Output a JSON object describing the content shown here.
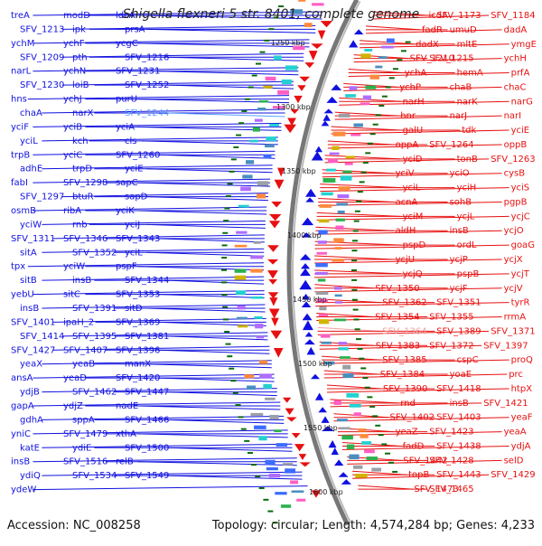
{
  "title": "Shigella flexneri 5 str. 8401, complete genome",
  "footer": {
    "accession": "Accession: NC_008258",
    "summary": "Topology: circular; Length: 4,574,284 bp; Genes: 4,233"
  },
  "colors": {
    "forward": "#e81010",
    "reverse": "#1010e0",
    "highlight": "#5aa0ff",
    "pseudogene": "#f0a0a0",
    "backbone": "#777777",
    "tick": "#0b6b0b"
  },
  "scale_ticks": [
    "1250 kbp",
    "1300 kbp",
    "1350 kbp",
    "1400 kbp",
    "1450 kbp",
    "1500 kbp",
    "1550 kbp",
    "1600 kbp"
  ],
  "left_labels": [
    "treA",
    "modD",
    "ldcA",
    "SFV_1213",
    "ipk",
    "prsA",
    "ychM",
    "ychF",
    "ycgC",
    "SFV_1209",
    "pth",
    "SFV_1216",
    "narL",
    "ychN",
    "SFV_1231",
    "SFV_1230",
    "loiB",
    "SFV_1252",
    "hns",
    "ychJ",
    "purU",
    "chaA",
    "narX",
    "SFV_1244",
    "yciF",
    "yciB",
    "yciA",
    "yciL",
    "kch",
    "cls",
    "trpB",
    "yciC",
    "SFV_1260",
    "adhE",
    "trpD",
    "yciE",
    "fabI",
    "SFV_1298",
    "sapC",
    "SFV_1297",
    "btuR",
    "sapD",
    "osmB",
    "ribA",
    "yciK",
    "yciW",
    "rnb",
    "yciJ",
    "SFV_1311",
    "SFV_1346",
    "SFV_1343",
    "sitA",
    "SFV_1352",
    "yciL",
    "tpx",
    "yciW",
    "pspF",
    "sitB",
    "insB",
    "SFV_1344",
    "yebU",
    "sitC",
    "SFV_1353",
    "insB",
    "SFV_1391",
    "sitD",
    "SFV_1401",
    "ipaH_2",
    "SFV_1369",
    "SFV_1414",
    "SFV_1395",
    "SFV_1381",
    "SFV_1427",
    "SFV_1407",
    "SFV_1396",
    "yeaX",
    "yeaB",
    "manX",
    "ansA",
    "yeaD",
    "SFV_1420",
    "ydjB",
    "SFV_1462",
    "SFV_1447",
    "gapA",
    "ydjZ",
    "nadE",
    "gdhA",
    "sppA",
    "SFV_1466",
    "yniC",
    "SFV_1479",
    "xthA",
    "katE",
    "ydiE",
    "SFV_1500",
    "insB",
    "SFV_1516",
    "relB",
    "ydiQ",
    "SFV_1534",
    "SFV_1549",
    "ydeW"
  ],
  "right_labels": [
    "icdA",
    "SFV_1173",
    "SFV_1184",
    "fadR",
    "umuD",
    "dadA",
    "dadX",
    "mltE",
    "ymgE",
    "SFV_1210",
    "SFV_1215",
    "ychH",
    "ychA",
    "hemA",
    "prfA",
    "ychP",
    "chaB",
    "chaC",
    "narH",
    "narK",
    "narG",
    "hnr",
    "narJ",
    "narI",
    "galU",
    "tdk",
    "yciE",
    "oppA",
    "SFV_1264",
    "oppB",
    "yciD",
    "tonB",
    "SFV_1263",
    "yciV",
    "yciO",
    "cysB",
    "yciL",
    "yciH",
    "yciS",
    "acnA",
    "sohB",
    "pgpB",
    "yciM",
    "ycjL",
    "ycjC",
    "aldH",
    "insB",
    "ycjO",
    "pspD",
    "ordL",
    "goaG",
    "ycjU",
    "ycjP",
    "ycjX",
    "ycjQ",
    "pspB",
    "ycjT",
    "SFV_1350",
    "ycjF",
    "ycjV",
    "SFV_1362",
    "SFV_1351",
    "tyrR",
    "SFV_1354",
    "SFV_1355",
    "rrmA",
    "SFV_1364",
    "SFV_1389",
    "SFV_1371",
    "SFV_1383",
    "SFV_1372",
    "SFV_1397",
    "SFV_1385",
    "cspC",
    "proQ",
    "SFV_1384",
    "yoaE",
    "prc",
    "SFV_1390",
    "SFV_1418",
    "htpX",
    "rnd",
    "insB",
    "SFV_1421",
    "SFV_1402",
    "SFV_1403",
    "yeaF",
    "yeaZ",
    "SFV_1423",
    "yeaA",
    "fadD",
    "SFV_1438",
    "ydjA",
    "SFV_1442",
    "SFV_1428",
    "selD",
    "topB",
    "SFV_1443",
    "SFV_1429",
    "SFV_1473",
    "SFV_1465"
  ]
}
